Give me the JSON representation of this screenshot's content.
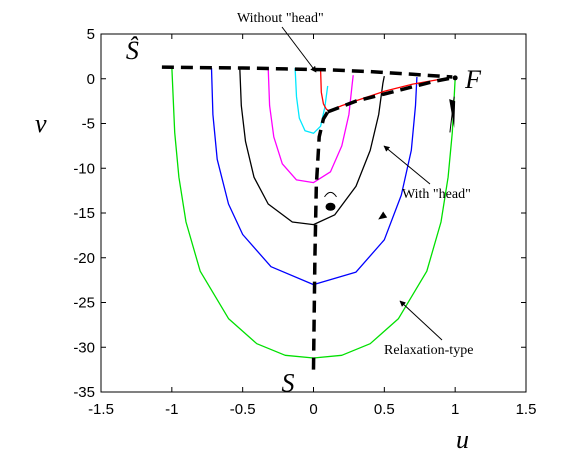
{
  "chart_data": {
    "type": "line",
    "xlabel": "u",
    "ylabel": "v",
    "xlim": [
      -1.5,
      1.5
    ],
    "ylim": [
      -35,
      5
    ],
    "xticks": [
      -1.5,
      -1,
      -0.5,
      0,
      0.5,
      1,
      1.5
    ],
    "yticks": [
      5,
      0,
      -5,
      -10,
      -15,
      -20,
      -25,
      -30,
      -35
    ],
    "xtick_labels": [
      "-1.5",
      "-1",
      "-0.5",
      "0",
      "0.5",
      "1",
      "1.5"
    ],
    "ytick_labels": [
      "5",
      "0",
      "-5",
      "-10",
      "-15",
      "-20",
      "-25",
      "-30",
      "-35"
    ],
    "grid": false,
    "series": [
      {
        "color": "#00e000",
        "x": [
          -1,
          -0.98,
          -0.95,
          -0.9,
          -0.8,
          -0.6,
          -0.4,
          -0.2,
          0,
          0.2,
          0.4,
          0.6,
          0.8,
          0.9,
          0.95,
          0.98,
          1
        ],
        "y": [
          1.4,
          -6,
          -11,
          -16,
          -21.5,
          -26.8,
          -29.6,
          -30.9,
          -31.2,
          -30.9,
          -29.6,
          -26.8,
          -21.5,
          -16,
          -11,
          -6,
          0.1
        ]
      },
      {
        "color": "#0000ff",
        "x": [
          -0.72,
          -0.71,
          -0.68,
          -0.6,
          -0.5,
          -0.3,
          0,
          0.3,
          0.5,
          0.62,
          0.69,
          0.72,
          0.73
        ],
        "y": [
          1.2,
          -4,
          -9,
          -14,
          -17.4,
          -21,
          -23,
          -21.6,
          -18,
          -13,
          -8,
          -3,
          0.2
        ]
      },
      {
        "color": "#000000",
        "x": [
          -0.52,
          -0.51,
          -0.48,
          -0.42,
          -0.32,
          -0.15,
          0,
          0.15,
          0.3,
          0.4,
          0.46,
          0.49,
          0.5
        ],
        "y": [
          1.2,
          -3,
          -7,
          -11,
          -14,
          -16,
          -16.3,
          -15.2,
          -12,
          -8,
          -4,
          -0.5,
          0.3
        ]
      },
      {
        "color": "#ff00ff",
        "x": [
          -0.32,
          -0.31,
          -0.28,
          -0.22,
          -0.12,
          0,
          0.12,
          0.2,
          0.25,
          0.27,
          0.28
        ],
        "y": [
          1.2,
          -3,
          -6.5,
          -9.5,
          -11.3,
          -11.6,
          -10.4,
          -7.5,
          -4,
          -1,
          0.4
        ]
      },
      {
        "color": "#00e8ff",
        "x": [
          -0.13,
          -0.12,
          -0.1,
          -0.06,
          0,
          0.05,
          0.08,
          0.1
        ],
        "y": [
          1.2,
          -2,
          -4.4,
          -5.8,
          -6.1,
          -5.3,
          -3.2,
          -0.8
        ]
      },
      {
        "color": "#ff0000",
        "x": [
          0.05,
          0.055,
          0.07,
          0.09,
          0.11,
          0.2,
          0.35,
          0.5,
          0.7,
          0.95
        ],
        "y": [
          1.0,
          -1.5,
          -2.8,
          -3.4,
          -3.6,
          -3.0,
          -2.2,
          -1.4,
          -0.6,
          0.1
        ]
      },
      {
        "color": "#000000",
        "dashed": true,
        "x": [
          -1.07,
          -0.8,
          -0.5,
          -0.2,
          0.1,
          0.4,
          0.7,
          0.98
        ],
        "y": [
          1.3,
          1.25,
          1.2,
          1.1,
          1.0,
          0.8,
          0.5,
          0.2
        ]
      },
      {
        "color": "#000000",
        "dashed": true,
        "x": [
          0.0,
          0.01,
          0.02,
          0.04,
          0.07,
          0.1
        ],
        "y": [
          -32.5,
          -20,
          -12,
          -6.5,
          -4.5,
          -3.7
        ]
      },
      {
        "color": "#000000",
        "dashed": true,
        "x": [
          0.1,
          0.3,
          0.5,
          0.7,
          0.85,
          0.98
        ],
        "y": [
          -3.7,
          -2.5,
          -1.7,
          -0.9,
          -0.3,
          0.1
        ]
      }
    ],
    "points": [
      {
        "label": "Ŝ",
        "x": -1.07,
        "y": 1.3
      },
      {
        "label": "F",
        "x": 1.0,
        "y": 0.1
      },
      {
        "label": "S",
        "x": 0.0,
        "y": -32.5
      }
    ],
    "annotations": [
      {
        "text": "Without \"head\"",
        "x": 0.05,
        "y": 0.3
      },
      {
        "text": "With \"head\"",
        "x": 0.48,
        "y": -8.8
      },
      {
        "text": "Relaxation-type",
        "x": 0.62,
        "y": -24.5
      }
    ]
  }
}
